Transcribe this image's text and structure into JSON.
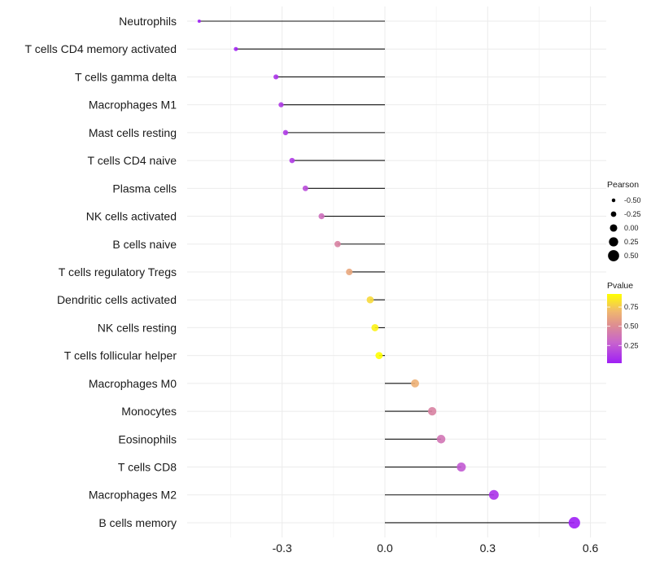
{
  "chart_data": {
    "type": "lollipop",
    "title": "",
    "xlabel": "",
    "ylabel": "",
    "xlim": [
      -0.58,
      0.6
    ],
    "x_ticks": [
      -0.3,
      0.0,
      0.3,
      0.6
    ],
    "x_tick_labels": [
      "-0.3",
      "0.0",
      "0.3",
      "0.6"
    ],
    "grid": true,
    "categories": [
      "Neutrophils",
      "T cells CD4 memory activated",
      "T cells gamma delta",
      "Macrophages M1",
      "Mast cells resting",
      "T cells CD4 naive",
      "Plasma cells",
      "NK cells activated",
      "B cells naive",
      "T cells regulatory  Tregs",
      "Dendritic cells activated",
      "NK cells resting",
      "T cells follicular helper",
      "Macrophages M0",
      "Monocytes",
      "Eosinophils",
      "T cells CD8",
      "Macrophages M2",
      "B cells memory"
    ],
    "pearson": [
      -0.542,
      -0.435,
      -0.318,
      -0.303,
      -0.29,
      -0.271,
      -0.232,
      -0.185,
      -0.138,
      -0.104,
      -0.043,
      -0.029,
      -0.017,
      0.088,
      0.138,
      0.164,
      0.223,
      0.318,
      0.553
    ],
    "pvalue": [
      0.02,
      0.04,
      0.1,
      0.12,
      0.12,
      0.13,
      0.2,
      0.35,
      0.45,
      0.62,
      0.8,
      0.88,
      0.93,
      0.66,
      0.45,
      0.38,
      0.25,
      0.1,
      0.02
    ],
    "legend_size": {
      "title": "Pearson",
      "values": [
        -0.5,
        -0.25,
        0.0,
        0.25,
        0.5
      ],
      "labels": [
        "-0.50",
        "-0.25",
        "0.00",
        "0.25",
        "0.50"
      ]
    },
    "legend_color": {
      "title": "Pvalue",
      "range": [
        0.02,
        0.92
      ],
      "labels": [
        "0.75",
        "0.50",
        "0.25"
      ],
      "values": [
        0.75,
        0.5,
        0.25
      ],
      "low_color": "#9F1FF5",
      "high_color": "#FFFF00"
    },
    "legend_position": "right"
  }
}
